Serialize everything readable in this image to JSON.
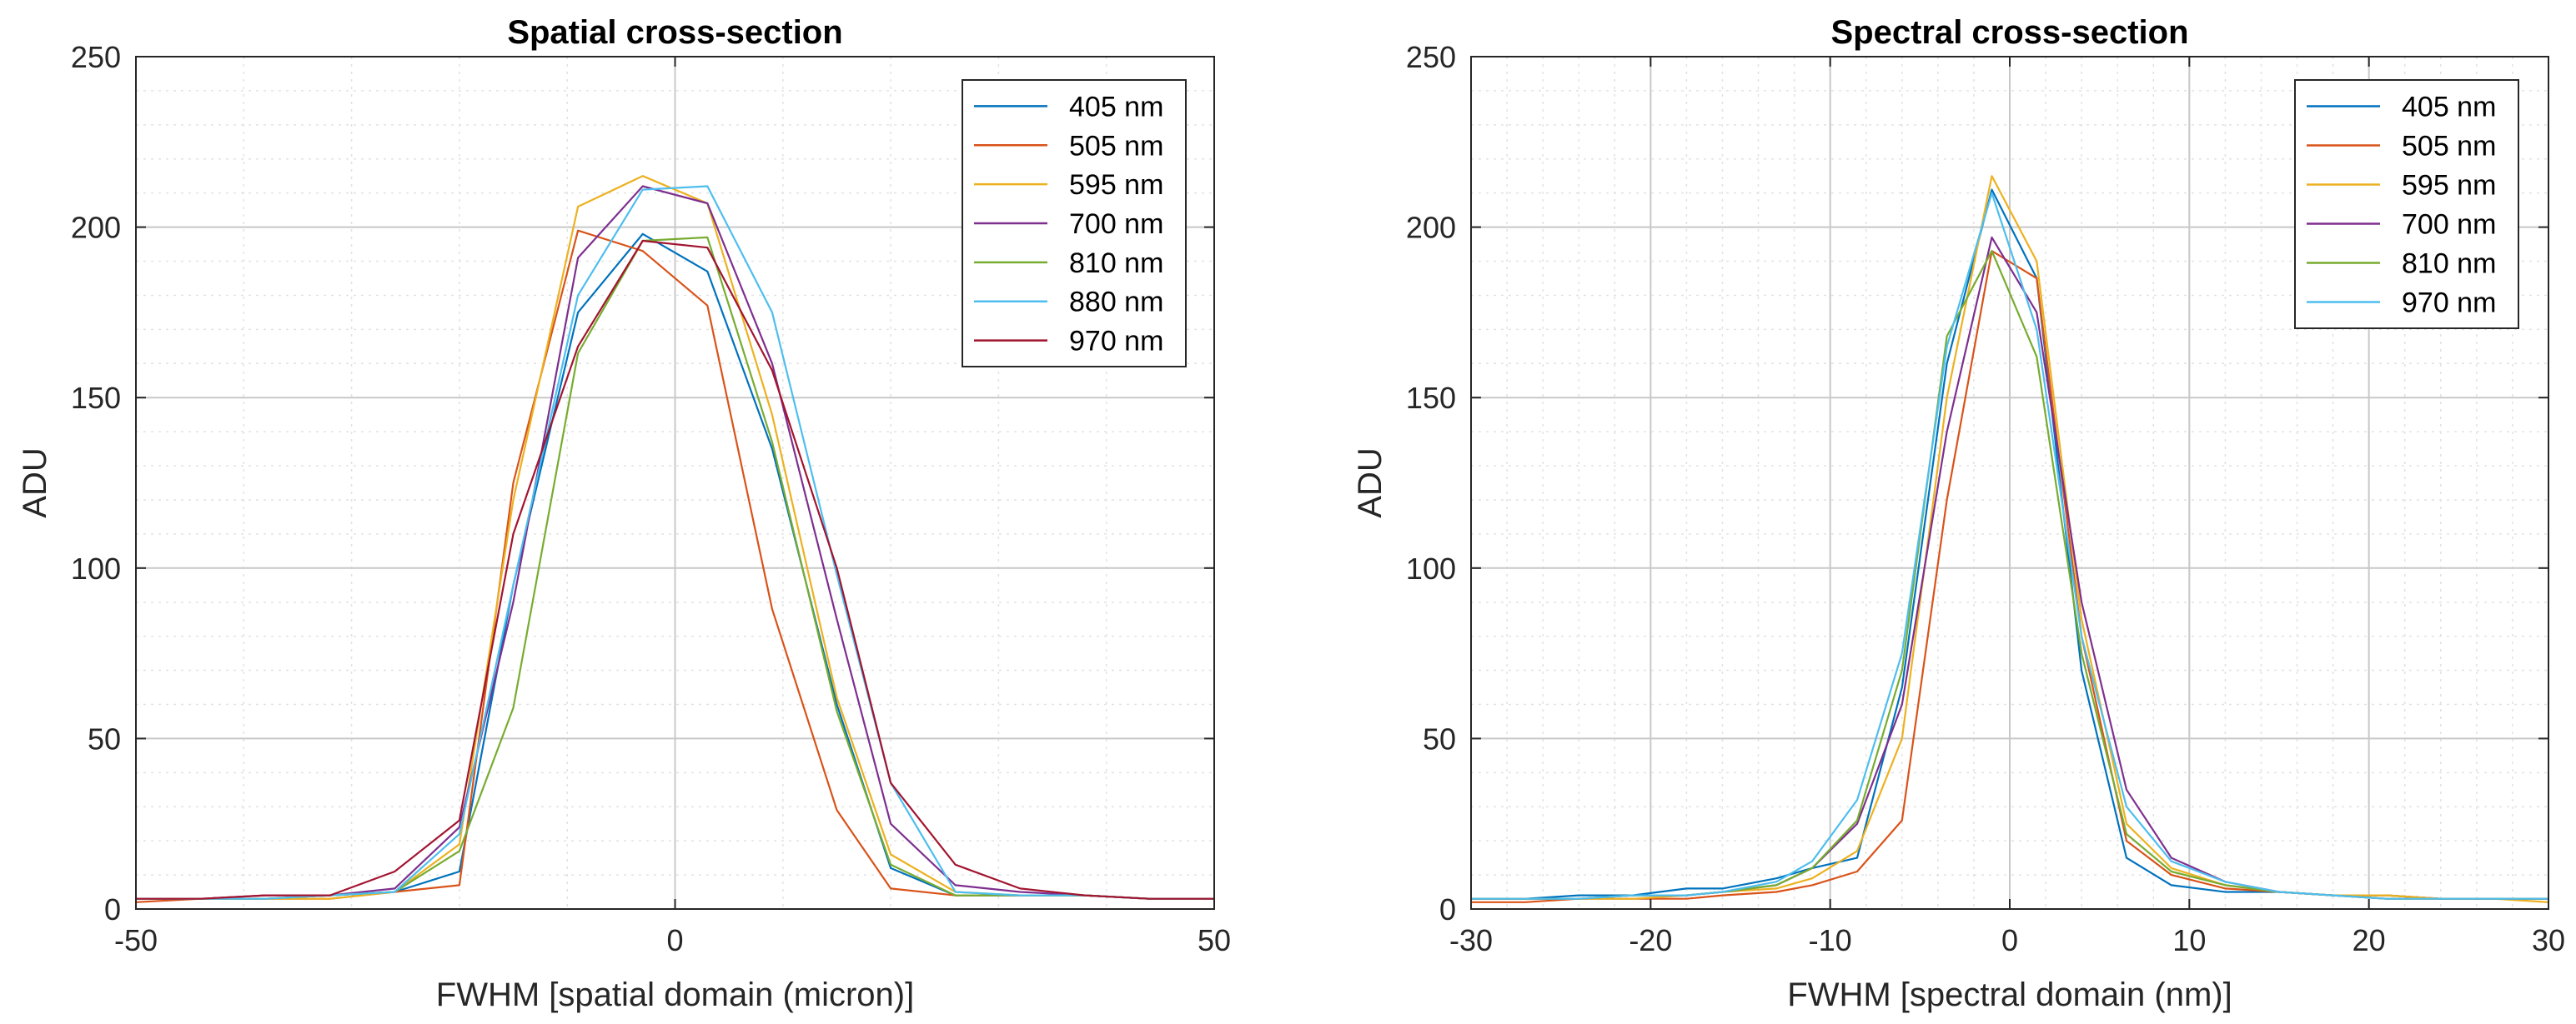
{
  "chart_data": [
    {
      "type": "line",
      "title": "Spatial cross-section",
      "xlabel": "FWHM [spatial domain (micron)]",
      "ylabel": "ADU",
      "xlim": [
        -50,
        50
      ],
      "ylim": [
        0,
        250
      ],
      "xticks": [
        -50,
        0,
        50
      ],
      "yticks": [
        0,
        50,
        100,
        150,
        200,
        250
      ],
      "grid": "major and minor, dotted",
      "legend_location": "top-right",
      "series": [
        {
          "name": "405 nm",
          "color": "#0072BD",
          "x": [
            -50,
            -44,
            -38,
            -32,
            -26,
            -20,
            -15,
            -9,
            -3,
            3,
            9,
            15,
            20,
            26,
            32,
            38,
            44,
            50
          ],
          "y": [
            3,
            3,
            3,
            4,
            5,
            11,
            95,
            175,
            198,
            187,
            135,
            60,
            12,
            4,
            4,
            4,
            3,
            3
          ]
        },
        {
          "name": "505 nm",
          "color": "#D95319",
          "x": [
            -50,
            -44,
            -38,
            -32,
            -26,
            -20,
            -15,
            -9,
            -3,
            3,
            9,
            15,
            20,
            26,
            32,
            38,
            44,
            50
          ],
          "y": [
            2,
            3,
            3,
            3,
            5,
            7,
            125,
            199,
            193,
            177,
            88,
            29,
            6,
            4,
            4,
            4,
            3,
            3
          ]
        },
        {
          "name": "595 nm",
          "color": "#EDB120",
          "x": [
            -50,
            -44,
            -38,
            -32,
            -26,
            -20,
            -15,
            -9,
            -3,
            3,
            9,
            15,
            20,
            26,
            32,
            38,
            44,
            50
          ],
          "y": [
            3,
            3,
            3,
            3,
            5,
            19,
            120,
            206,
            215,
            207,
            145,
            62,
            16,
            5,
            4,
            4,
            3,
            3
          ]
        },
        {
          "name": "700 nm",
          "color": "#7E2F8E",
          "x": [
            -50,
            -44,
            -38,
            -32,
            -26,
            -20,
            -15,
            -9,
            -3,
            3,
            9,
            15,
            20,
            26,
            32,
            38,
            44,
            50
          ],
          "y": [
            3,
            3,
            4,
            4,
            6,
            24,
            90,
            191,
            212,
            207,
            160,
            85,
            25,
            7,
            5,
            4,
            3,
            3
          ]
        },
        {
          "name": "810 nm",
          "color": "#77AC30",
          "x": [
            -50,
            -44,
            -38,
            -32,
            -26,
            -20,
            -15,
            -9,
            -3,
            3,
            9,
            15,
            20,
            26,
            32,
            38,
            44,
            50
          ],
          "y": [
            3,
            3,
            3,
            4,
            5,
            17,
            59,
            163,
            196,
            197,
            137,
            58,
            13,
            4,
            4,
            4,
            3,
            3
          ]
        },
        {
          "name": "880 nm",
          "color": "#4DBEEE",
          "x": [
            -50,
            -44,
            -38,
            -32,
            -26,
            -20,
            -15,
            -9,
            -3,
            3,
            9,
            15,
            20,
            26,
            32,
            38,
            44,
            50
          ],
          "y": [
            3,
            3,
            3,
            4,
            5,
            22,
            95,
            180,
            211,
            212,
            175,
            98,
            37,
            5,
            4,
            4,
            3,
            3
          ]
        },
        {
          "name": "970 nm",
          "color": "#A2142F",
          "x": [
            -50,
            -44,
            -38,
            -32,
            -26,
            -20,
            -15,
            -9,
            -3,
            3,
            9,
            15,
            20,
            26,
            32,
            38,
            44,
            50
          ],
          "y": [
            3,
            3,
            4,
            4,
            11,
            26,
            110,
            165,
            196,
            194,
            158,
            100,
            37,
            13,
            6,
            4,
            3,
            3
          ]
        }
      ]
    },
    {
      "type": "line",
      "title": "Spectral cross-section",
      "xlabel": "FWHM [spectral domain (nm)]",
      "ylabel": "ADU",
      "xlim": [
        -30,
        30
      ],
      "ylim": [
        0,
        250
      ],
      "xticks": [
        -30,
        -20,
        -10,
        0,
        10,
        20,
        30
      ],
      "yticks": [
        0,
        50,
        100,
        150,
        200,
        250
      ],
      "grid": "major and minor, dotted",
      "legend_location": "top-right",
      "series": [
        {
          "name": "405 nm",
          "color": "#0072BD",
          "x": [
            -30,
            -27,
            -24,
            -21,
            -18,
            -16,
            -13,
            -11,
            -8.5,
            -6,
            -3.5,
            -1,
            1.5,
            4,
            6.5,
            9,
            12,
            15,
            18,
            21,
            24,
            27,
            30
          ],
          "y": [
            3,
            3,
            4,
            4,
            6,
            6,
            9,
            12,
            15,
            65,
            160,
            211,
            185,
            70,
            15,
            7,
            5,
            5,
            4,
            4,
            3,
            3,
            3
          ]
        },
        {
          "name": "505 nm",
          "color": "#D95319",
          "x": [
            -30,
            -27,
            -24,
            -21,
            -18,
            -16,
            -13,
            -11,
            -8.5,
            -6,
            -3.5,
            -1,
            1.5,
            4,
            6.5,
            9,
            12,
            15,
            18,
            21,
            24,
            27,
            30
          ],
          "y": [
            2,
            2,
            3,
            3,
            3,
            4,
            5,
            7,
            11,
            26,
            120,
            193,
            185,
            80,
            20,
            10,
            6,
            5,
            4,
            4,
            3,
            3,
            3
          ]
        },
        {
          "name": "595 nm",
          "color": "#EDB120",
          "x": [
            -30,
            -27,
            -24,
            -21,
            -18,
            -16,
            -13,
            -11,
            -8.5,
            -6,
            -3.5,
            -1,
            1.5,
            4,
            6.5,
            9,
            12,
            15,
            18,
            21,
            24,
            27,
            30
          ],
          "y": [
            3,
            3,
            3,
            3,
            4,
            5,
            6,
            9,
            17,
            50,
            150,
            215,
            190,
            85,
            25,
            12,
            7,
            5,
            4,
            4,
            3,
            3,
            2
          ]
        },
        {
          "name": "700 nm",
          "color": "#7E2F8E",
          "x": [
            -30,
            -27,
            -24,
            -21,
            -18,
            -16,
            -13,
            -11,
            -8.5,
            -6,
            -3.5,
            -1,
            1.5,
            4,
            6.5,
            9,
            12,
            15,
            18,
            21,
            24,
            27,
            30
          ],
          "y": [
            3,
            3,
            3,
            4,
            4,
            5,
            7,
            12,
            25,
            60,
            140,
            197,
            175,
            90,
            35,
            15,
            8,
            5,
            4,
            3,
            3,
            3,
            3
          ]
        },
        {
          "name": "810 nm",
          "color": "#77AC30",
          "x": [
            -30,
            -27,
            -24,
            -21,
            -18,
            -16,
            -13,
            -11,
            -8.5,
            -6,
            -3.5,
            -1,
            1.5,
            4,
            6.5,
            9,
            12,
            15,
            18,
            21,
            24,
            27,
            30
          ],
          "y": [
            3,
            3,
            3,
            4,
            4,
            5,
            7,
            12,
            26,
            70,
            168,
            193,
            162,
            75,
            22,
            11,
            7,
            5,
            4,
            3,
            3,
            3,
            3
          ]
        },
        {
          "name": "970 nm",
          "color": "#4DBEEE",
          "x": [
            -30,
            -27,
            -24,
            -21,
            -18,
            -16,
            -13,
            -11,
            -8.5,
            -6,
            -3.5,
            -1,
            1.5,
            4,
            6.5,
            9,
            12,
            15,
            18,
            21,
            24,
            27,
            30
          ],
          "y": [
            3,
            3,
            3,
            4,
            4,
            5,
            8,
            14,
            32,
            75,
            165,
            210,
            170,
            80,
            30,
            14,
            8,
            5,
            4,
            3,
            3,
            3,
            3
          ]
        }
      ]
    }
  ]
}
